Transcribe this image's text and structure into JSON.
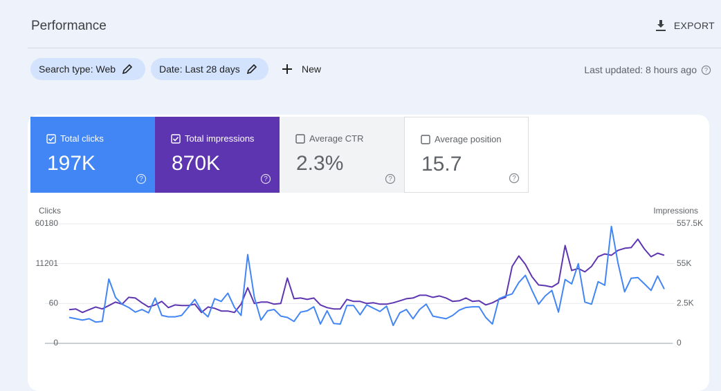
{
  "header": {
    "title": "Performance",
    "export": "EXPORT"
  },
  "filters": {
    "chips": [
      "Search type: Web",
      "Date: Last 28 days"
    ],
    "new": "New",
    "last_updated": "Last updated: 8 hours ago"
  },
  "metrics": [
    {
      "label": "Total clicks",
      "value": "197K",
      "checked": true,
      "color": "#4285f4"
    },
    {
      "label": "Total impressions",
      "value": "870K",
      "checked": true,
      "color": "#5e35b1"
    },
    {
      "label": "Average CTR",
      "value": "2.3%",
      "checked": false,
      "color": "#f1f3f4"
    },
    {
      "label": "Average position",
      "value": "15.7",
      "checked": false,
      "color": "#ffffff"
    }
  ],
  "chart_data": {
    "type": "line",
    "y_label": "Clicks",
    "y2_label": "Impressions",
    "y_scale": "piecewise",
    "ylim": [
      0,
      60180
    ],
    "yticks": [
      0,
      60,
      11201,
      60180
    ],
    "y2lim": [
      0,
      557500
    ],
    "y2ticks": [
      0,
      {
        "value": 2500,
        "label": "2.5K"
      },
      {
        "value": 55000,
        "label": "55K"
      },
      {
        "value": 557500,
        "label": "557.5K"
      }
    ],
    "grid": true,
    "series": [
      {
        "name": "Clicks",
        "color": "#4285f4",
        "values": [
          39,
          37,
          35,
          37,
          32,
          33,
          6900,
          1790,
          59,
          54,
          47,
          51,
          46,
          1600,
          42,
          40,
          40,
          42,
          54,
          1200,
          49,
          40,
          1400,
          640,
          2940,
          54,
          42,
          22370,
          1790,
          35,
          49,
          51,
          41,
          39,
          33,
          47,
          49,
          55,
          29,
          49,
          30,
          29,
          57,
          57,
          43,
          58,
          53,
          48,
          56,
          27,
          46,
          51,
          37,
          51,
          59,
          41,
          39,
          37,
          42,
          50,
          54,
          55,
          55,
          39,
          29,
          1400,
          2170,
          2750,
          5940,
          7930,
          3710,
          59,
          2170,
          3710,
          47,
          6780,
          5560,
          11201,
          445,
          59,
          6150,
          5170,
          57000,
          12000,
          3330,
          7140,
          7330,
          5560,
          3710,
          7730,
          4100
        ]
      },
      {
        "name": "Impressions",
        "color": "#5e35b1",
        "axis": "y2",
        "values": [
          2110,
          2160,
          1940,
          2110,
          2280,
          2160,
          2370,
          4310,
          2460,
          10650,
          9740,
          3400,
          2280,
          2410,
          5220,
          2240,
          2410,
          2370,
          2370,
          2460,
          1940,
          2280,
          2200,
          2030,
          2030,
          1940,
          2460,
          23300,
          2500,
          4310,
          4310,
          2460,
          2500,
          36000,
          8840,
          9740,
          7930,
          9740,
          2410,
          2240,
          2160,
          2160,
          7930,
          5220,
          5220,
          2500,
          3400,
          2460,
          2460,
          3400,
          6120,
          8840,
          9740,
          13360,
          13360,
          10650,
          12460,
          9740,
          5220,
          6120,
          9740,
          5220,
          6120,
          2410,
          3400,
          7930,
          10650,
          51400,
          152000,
          54100,
          37800,
          26900,
          26000,
          24200,
          29600,
          284000,
          46000,
          48700,
          44200,
          51400,
          143000,
          178000,
          161000,
          223000,
          249000,
          258000,
          364000,
          240000,
          143000,
          187000,
          161000
        ]
      }
    ]
  }
}
